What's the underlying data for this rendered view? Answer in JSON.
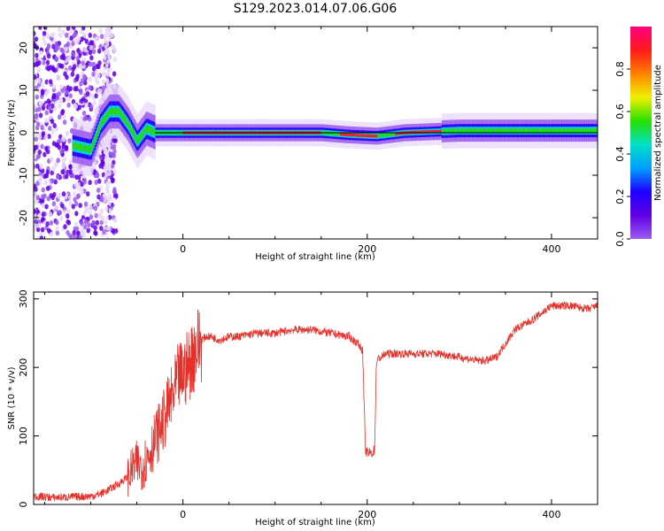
{
  "figure": {
    "title": "S129.2023.014.07.06.G06"
  },
  "colors": {
    "snr_line": "#e8302a",
    "centre_line": "#000000",
    "colormap": [
      "#ffffff",
      "#e8d8f8",
      "#9b5cf0",
      "#6200e6",
      "#1e00ff",
      "#00a0ff",
      "#00e0c8",
      "#28e000",
      "#f0f000",
      "#ff8000",
      "#ff1a1a",
      "#ff0080"
    ]
  },
  "chart_data": [
    {
      "type": "heatmap",
      "title": "",
      "xlabel": "Height of straight line (km)",
      "ylabel": "Frequency (Hz)",
      "xlim": [
        -162,
        450
      ],
      "ylim": [
        -25,
        25
      ],
      "x_ticks": [
        0,
        200,
        400
      ],
      "y_ticks": [
        -20,
        -10,
        0,
        10,
        20
      ],
      "x_tick_labels": [
        "0",
        "200",
        "400"
      ],
      "y_tick_labels": [
        "-20",
        "-10",
        "0",
        "10",
        "20"
      ],
      "ridge": {
        "description_free_points": [
          {
            "x": -162,
            "y": 0
          },
          {
            "x": -120,
            "y": -3
          },
          {
            "x": -100,
            "y": -4
          },
          {
            "x": -90,
            "y": 2
          },
          {
            "x": -80,
            "y": 5
          },
          {
            "x": -70,
            "y": 5
          },
          {
            "x": -60,
            "y": 2
          },
          {
            "x": -50,
            "y": -2
          },
          {
            "x": -40,
            "y": 1
          },
          {
            "x": -30,
            "y": 0
          },
          {
            "x": 0,
            "y": 0
          },
          {
            "x": 100,
            "y": 0
          },
          {
            "x": 150,
            "y": 0
          },
          {
            "x": 180,
            "y": -0.5
          },
          {
            "x": 210,
            "y": -0.8
          },
          {
            "x": 240,
            "y": 0
          },
          {
            "x": 300,
            "y": 0.5
          },
          {
            "x": 400,
            "y": 0.5
          },
          {
            "x": 450,
            "y": 0.5
          }
        ]
      },
      "colorbar": {
        "label": "Normalized spectral amplitude",
        "range": [
          0,
          1
        ],
        "ticks": [
          0.0,
          0.2,
          0.4,
          0.6,
          0.8
        ],
        "tick_labels": [
          "0.0",
          "0.2",
          "0.4",
          "0.6",
          "0.8"
        ]
      }
    },
    {
      "type": "line",
      "title": "",
      "xlabel": "Height of straight line (km)",
      "ylabel": "SNR (10 * v/v)",
      "xlim": [
        -162,
        450
      ],
      "ylim": [
        0,
        310
      ],
      "x_ticks": [
        0,
        200,
        400
      ],
      "y_ticks": [
        0,
        100,
        200,
        300
      ],
      "x_tick_labels": [
        "0",
        "200",
        "400"
      ],
      "y_tick_labels": [
        "0",
        "100",
        "200",
        "300"
      ],
      "series": [
        {
          "x": [
            -162,
            -140,
            -120,
            -100,
            -90,
            -80,
            -70,
            -60,
            -55,
            -50,
            -45,
            -40,
            -35,
            -30,
            -25,
            -20,
            -15,
            -10,
            -5,
            0,
            5,
            10,
            15,
            20,
            25,
            30,
            40,
            50,
            60,
            80,
            100,
            120,
            140,
            160,
            180,
            190,
            195,
            198,
            200,
            205,
            208,
            210,
            215,
            220,
            240,
            260,
            280,
            300,
            320,
            330,
            340,
            350,
            360,
            380,
            400,
            420,
            440,
            450
          ],
          "y": [
            12,
            10,
            11,
            12,
            15,
            22,
            30,
            40,
            52,
            60,
            55,
            65,
            80,
            95,
            110,
            125,
            145,
            160,
            185,
            190,
            200,
            215,
            230,
            240,
            245,
            245,
            240,
            245,
            245,
            250,
            250,
            255,
            255,
            250,
            245,
            235,
            225,
            80,
            75,
            75,
            80,
            210,
            215,
            220,
            220,
            220,
            220,
            215,
            210,
            210,
            215,
            235,
            255,
            270,
            290,
            290,
            285,
            290
          ]
        }
      ]
    }
  ]
}
